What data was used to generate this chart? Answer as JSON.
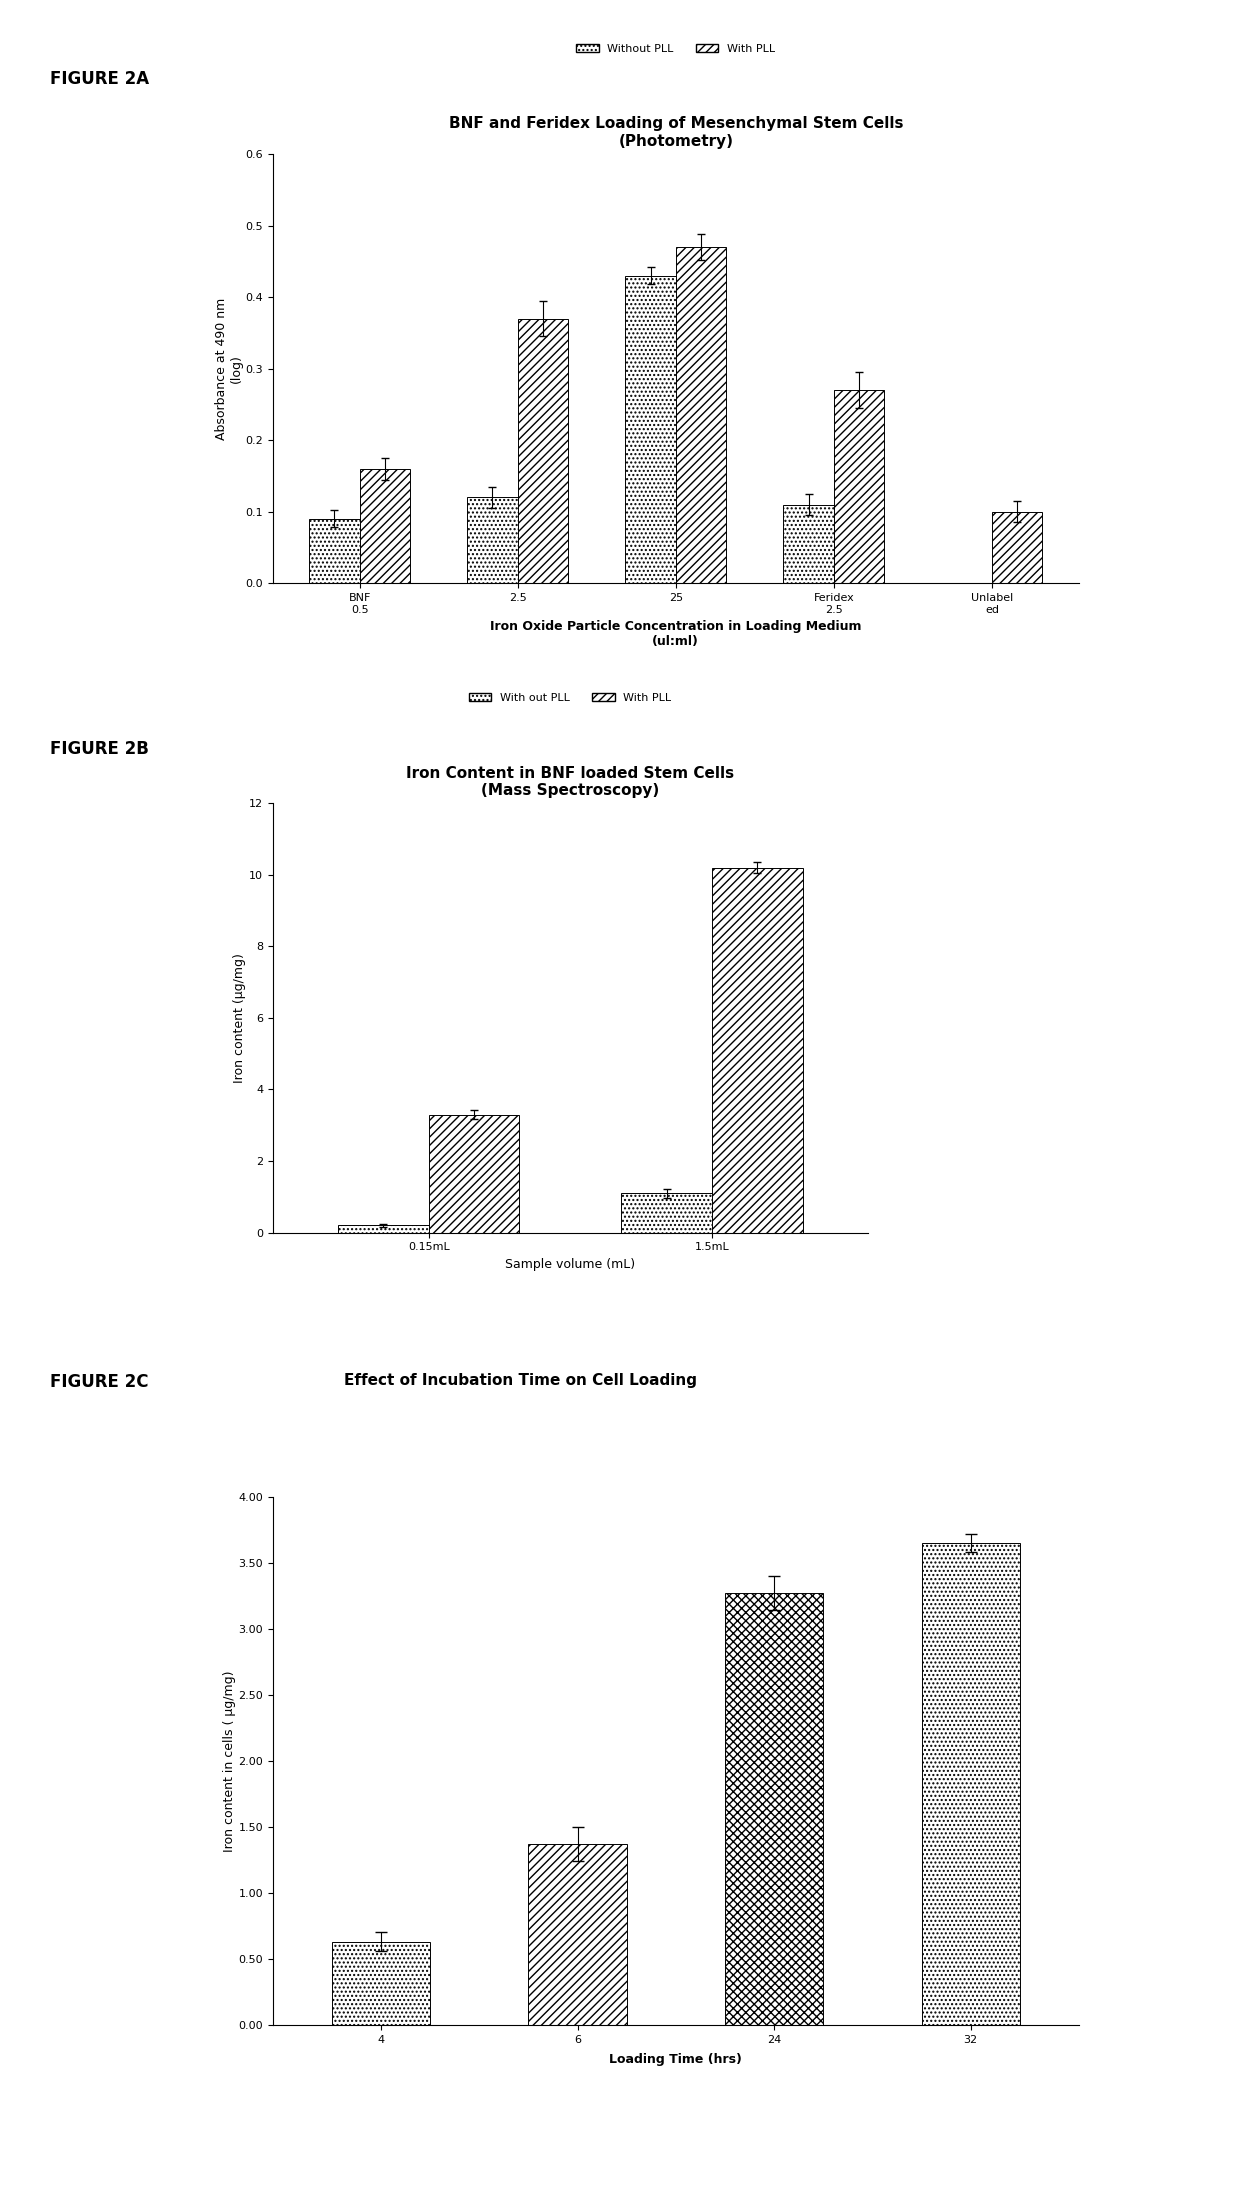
{
  "fig2a": {
    "title_line1": "BNF and Feridex Loading of Mesenchymal Stem Cells",
    "title_line2": "(Photometry)",
    "xlabel_line1": "Iron Oxide Particle Concentration in Loading Medium",
    "xlabel_line2": "(ul:ml)",
    "ylabel": "Absorbance at 490 nm\n(log)",
    "legend": [
      "Without PLL",
      "With PLL"
    ],
    "categories": [
      "BNF\n0.5",
      "2.5",
      "25",
      "Feridex\n2.5",
      "Unlabel\ned"
    ],
    "without_pll": [
      0.09,
      0.12,
      0.43,
      0.11,
      0.0
    ],
    "with_pll": [
      0.16,
      0.37,
      0.47,
      0.27,
      0.1
    ],
    "without_pll_err": [
      0.012,
      0.015,
      0.012,
      0.015,
      0.0
    ],
    "with_pll_err": [
      0.015,
      0.025,
      0.018,
      0.025,
      0.015
    ],
    "ylim": [
      0,
      0.6
    ],
    "yticks": [
      0,
      0.1,
      0.2,
      0.3,
      0.4,
      0.5,
      0.6
    ],
    "unlabeled_only_with_pll": true
  },
  "fig2b": {
    "title_line1": "Iron Content in BNF loaded Stem Cells",
    "title_line2": "(Mass Spectroscopy)",
    "xlabel": "Sample volume (mL)",
    "ylabel": "Iron content (μg/mg)",
    "legend": [
      "With out PLL",
      "With PLL"
    ],
    "categories": [
      "0.15mL",
      "1.5mL"
    ],
    "without_pll": [
      0.2,
      1.1
    ],
    "with_pll": [
      3.3,
      10.2
    ],
    "without_pll_err": [
      0.05,
      0.12
    ],
    "with_pll_err": [
      0.12,
      0.15
    ],
    "ylim": [
      0,
      12
    ],
    "yticks": [
      0,
      2,
      4,
      6,
      8,
      10,
      12
    ]
  },
  "fig2c": {
    "title": "Effect of Incubation Time on Cell Loading",
    "xlabel": "Loading Time (hrs)",
    "ylabel": "Iron content in cells ( μg/mg)",
    "categories": [
      "4",
      "6",
      "24",
      "32"
    ],
    "values": [
      0.63,
      1.37,
      3.27,
      3.65
    ],
    "errors": [
      0.07,
      0.13,
      0.13,
      0.07
    ],
    "hatch_patterns": [
      "....",
      "////",
      "....",
      "...."
    ],
    "ylim": [
      0,
      4.0
    ],
    "yticks": [
      0.0,
      0.5,
      1.0,
      1.5,
      2.0,
      2.5,
      3.0,
      3.5,
      4.0
    ]
  },
  "background": "#ffffff",
  "hatch_without": "....",
  "hatch_with": "////",
  "figure_label_fontsize": 12,
  "title_fontsize": 11,
  "axis_label_fontsize": 9,
  "tick_fontsize": 8,
  "legend_fontsize": 8
}
